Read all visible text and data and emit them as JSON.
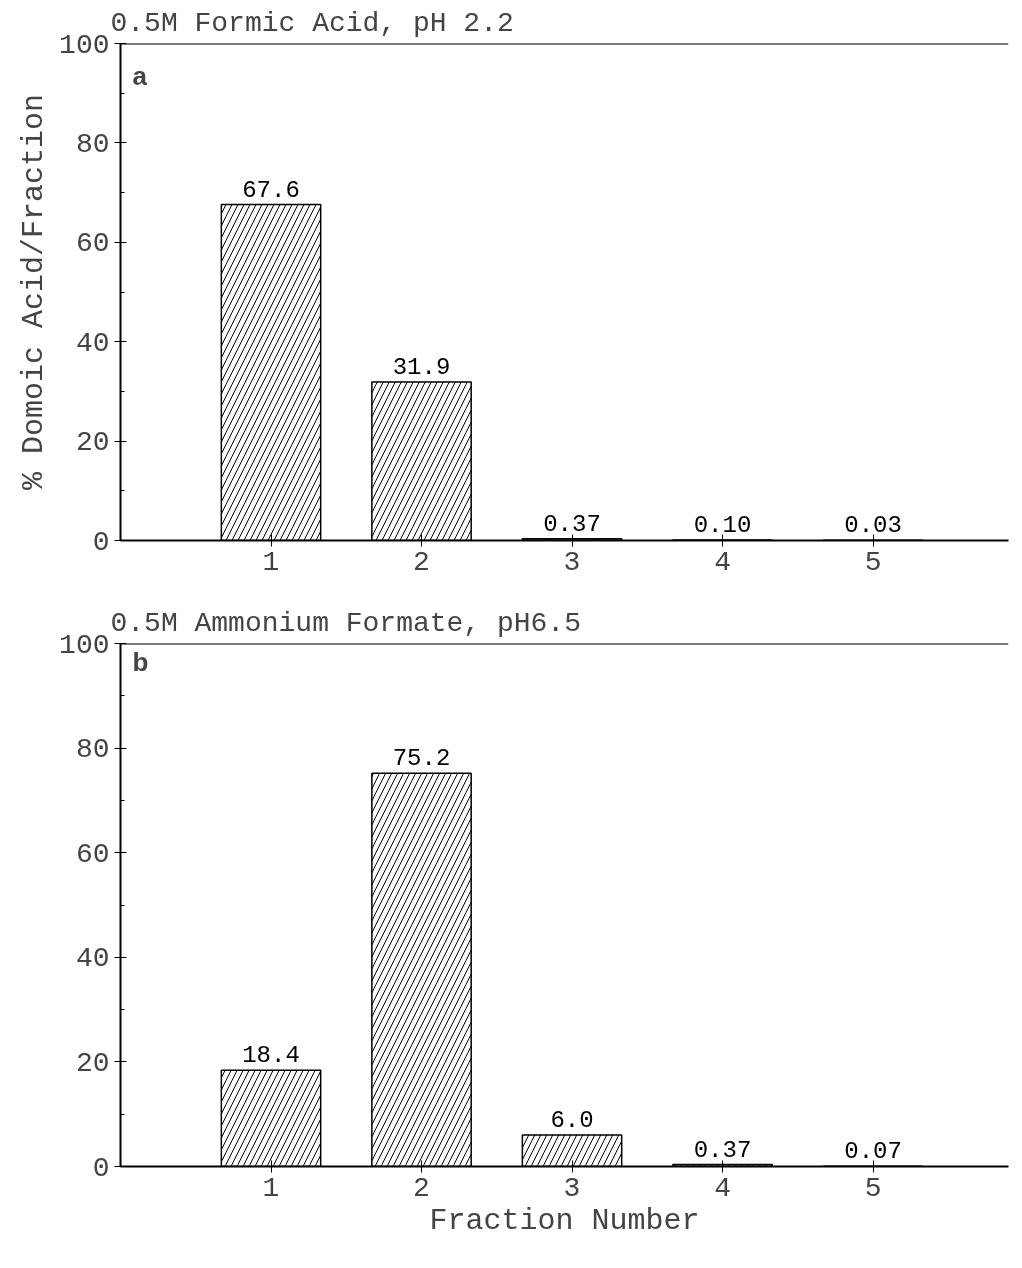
{
  "chart_data": [
    {
      "type": "bar",
      "title": "0.5M Formic Acid, pH 2.2",
      "ylabel": "% Domoic Acid/Fraction",
      "annotations": [
        "a"
      ],
      "categories": [
        "1",
        "2",
        "3",
        "4",
        "5"
      ],
      "series": [
        {
          "color": "#000000",
          "values": [
            67.6,
            31.9,
            0.37,
            0.1,
            0.03
          ],
          "value_labels": [
            "67.6",
            "31.9",
            "0.37",
            "0.10",
            "0.03"
          ]
        }
      ],
      "ylim": [
        0,
        100
      ],
      "yticks": [
        0,
        20,
        40,
        60,
        80,
        100
      ],
      "grid": false
    },
    {
      "type": "bar",
      "title": "0.5M Ammonium Formate, pH6.5",
      "xlabel": "Fraction Number",
      "annotations": [
        "b"
      ],
      "categories": [
        "1",
        "2",
        "3",
        "4",
        "5"
      ],
      "series": [
        {
          "color": "#000000",
          "values": [
            18.4,
            75.2,
            6.0,
            0.37,
            0.07
          ],
          "value_labels": [
            "18.4",
            "75.2",
            "6.0",
            "0.37",
            "0.07"
          ]
        }
      ],
      "ylim": [
        0,
        100
      ],
      "yticks": [
        0,
        20,
        40,
        60,
        80,
        100
      ],
      "grid": false
    }
  ]
}
